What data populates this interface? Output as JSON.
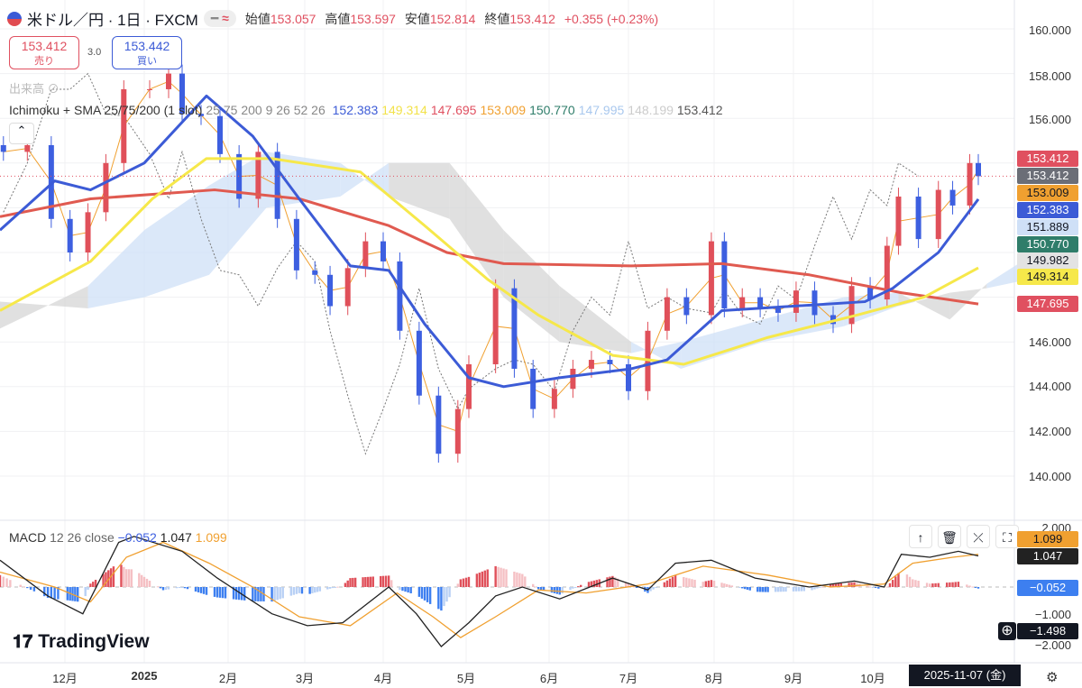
{
  "header": {
    "symbol": "米ドル／円 · 1日 · FXCM",
    "pill": "≈",
    "open_label": "始値",
    "open": "153.057",
    "high_label": "高値",
    "high": "153.597",
    "low_label": "安値",
    "low": "152.814",
    "close_label": "終値",
    "close": "153.412",
    "change": "+0.355 (+0.23%)"
  },
  "trade": {
    "sell_price": "153.412",
    "sell_label": "売り",
    "spread": "3.0",
    "buy_price": "153.442",
    "buy_label": "買い"
  },
  "volume_label": "出来高",
  "indicator": {
    "name": "Ichimoku + SMA 25/75/200 (1 slot)",
    "params": "25 75 200 9 26 52 26",
    "values": [
      {
        "v": "152.383",
        "c": "#3c5bd6"
      },
      {
        "v": "149.314",
        "c": "#f2e24a"
      },
      {
        "v": "147.695",
        "c": "#e05060"
      },
      {
        "v": "153.009",
        "c": "#f0a030"
      },
      {
        "v": "150.770",
        "c": "#2f7d6a"
      },
      {
        "v": "147.995",
        "c": "#a9c8ee"
      },
      {
        "v": "148.199",
        "c": "#cccccc"
      },
      {
        "v": "153.412",
        "c": "#555555"
      }
    ]
  },
  "price_axis": [
    "160.000",
    "158.000",
    "156.000",
    "146.000",
    "144.000",
    "142.000",
    "140.000"
  ],
  "price_tags": [
    {
      "v": "153.412",
      "bg": "#e05060",
      "fg": "#fff"
    },
    {
      "v": "153.412",
      "bg": "#6b6e77",
      "fg": "#fff"
    },
    {
      "v": "153.009",
      "bg": "#f0a030",
      "fg": "#131722"
    },
    {
      "v": "152.383",
      "bg": "#3c5bd6",
      "fg": "#fff"
    },
    {
      "v": "151.889",
      "bg": "#cfe0f7",
      "fg": "#131722"
    },
    {
      "v": "150.770",
      "bg": "#2f7d6a",
      "fg": "#fff"
    },
    {
      "v": "149.982",
      "bg": "#e3e3e3",
      "fg": "#131722"
    },
    {
      "v": "149.314",
      "bg": "#f6e84a",
      "fg": "#131722"
    },
    {
      "v": "147.695",
      "bg": "#e05060",
      "fg": "#fff"
    }
  ],
  "macd": {
    "label": "MACD",
    "params": "12 26 close",
    "hist": "−0.052",
    "macd": "1.047",
    "signal": "1.099",
    "axis": [
      "2.000",
      "−1.000",
      "−2.000"
    ],
    "tags": {
      "signal": "1.099",
      "macd": "1.047",
      "hist": "−0.052",
      "cursor": "−1.498"
    }
  },
  "months": [
    "12月",
    "2025",
    "2月",
    "3月",
    "4月",
    "5月",
    "6月",
    "7月",
    "8月",
    "9月",
    "10月"
  ],
  "cursor_date": "2025-11-07 (金)",
  "brand": "TradingView",
  "colors": {
    "up": "#e0505a",
    "down": "#3d5fe0",
    "sma25": "#3c5bd6",
    "sma75": "#f6e84a",
    "sma200": "#e05a50",
    "cloud_up": "#cfe0f7",
    "cloud_down": "#d6d6d6",
    "macd": "#222",
    "signal": "#f0a030"
  },
  "chart_data": [
    {
      "type": "candlestick",
      "title": "米ドル／円 · 1日 · FXCM",
      "ylim": [
        139,
        161
      ],
      "closes": [
        [
          "2024-11-13",
          154.5
        ],
        [
          "2024-11-20",
          154.8
        ],
        [
          "2024-11-27",
          151.5
        ],
        [
          "2024-12-03",
          150.0
        ],
        [
          "2024-12-10",
          151.8
        ],
        [
          "2024-12-17",
          154.0
        ],
        [
          "2024-12-24",
          157.3
        ],
        [
          "2025-01-03",
          157.3
        ],
        [
          "2025-01-10",
          158.0
        ],
        [
          "2025-01-15",
          156.2
        ],
        [
          "2025-01-22",
          156.1
        ],
        [
          "2025-01-29",
          154.4
        ],
        [
          "2025-02-05",
          152.4
        ],
        [
          "2025-02-12",
          154.5
        ],
        [
          "2025-02-19",
          151.5
        ],
        [
          "2025-02-26",
          149.2
        ],
        [
          "2025-03-05",
          149.0
        ],
        [
          "2025-03-11",
          147.6
        ],
        [
          "2025-03-18",
          149.3
        ],
        [
          "2025-03-25",
          150.5
        ],
        [
          "2025-04-01",
          149.6
        ],
        [
          "2025-04-07",
          146.5
        ],
        [
          "2025-04-14",
          143.6
        ],
        [
          "2025-04-21",
          141.0
        ],
        [
          "2025-04-28",
          143.0
        ],
        [
          "2025-05-02",
          145.0
        ],
        [
          "2025-05-12",
          148.4
        ],
        [
          "2025-05-19",
          144.8
        ],
        [
          "2025-05-26",
          143.0
        ],
        [
          "2025-06-03",
          143.9
        ],
        [
          "2025-06-10",
          144.8
        ],
        [
          "2025-06-17",
          145.2
        ],
        [
          "2025-06-24",
          145.0
        ],
        [
          "2025-07-01",
          143.8
        ],
        [
          "2025-07-08",
          146.5
        ],
        [
          "2025-07-15",
          148.0
        ],
        [
          "2025-07-22",
          147.2
        ],
        [
          "2025-07-31",
          150.5
        ],
        [
          "2025-08-05",
          147.5
        ],
        [
          "2025-08-12",
          148.0
        ],
        [
          "2025-08-19",
          147.5
        ],
        [
          "2025-08-26",
          147.3
        ],
        [
          "2025-09-02",
          148.3
        ],
        [
          "2025-09-09",
          147.2
        ],
        [
          "2025-09-16",
          146.8
        ],
        [
          "2025-09-23",
          148.5
        ],
        [
          "2025-09-30",
          147.9
        ],
        [
          "2025-10-06",
          150.3
        ],
        [
          "2025-10-10",
          152.5
        ],
        [
          "2025-10-17",
          150.6
        ],
        [
          "2025-10-24",
          152.8
        ],
        [
          "2025-10-29",
          152.1
        ],
        [
          "2025-11-04",
          154.0
        ],
        [
          "2025-11-07",
          153.412
        ]
      ],
      "sma25": [
        [
          "2024-11-12",
          151.0
        ],
        [
          "2024-11-28",
          153.2
        ],
        [
          "2024-12-11",
          152.8
        ],
        [
          "2025-01-01",
          154.0
        ],
        [
          "2025-01-24",
          157.0
        ],
        [
          "2025-02-10",
          155.2
        ],
        [
          "2025-02-27",
          152.4
        ],
        [
          "2025-03-19",
          149.4
        ],
        [
          "2025-04-03",
          149.2
        ],
        [
          "2025-04-16",
          146.8
        ],
        [
          "2025-05-02",
          144.4
        ],
        [
          "2025-05-15",
          144.0
        ],
        [
          "2025-06-05",
          144.4
        ],
        [
          "2025-07-02",
          144.8
        ],
        [
          "2025-07-15",
          145.2
        ],
        [
          "2025-08-04",
          147.4
        ],
        [
          "2025-09-01",
          147.6
        ],
        [
          "2025-09-28",
          147.8
        ],
        [
          "2025-10-08",
          148.4
        ],
        [
          "2025-10-24",
          150.0
        ],
        [
          "2025-11-07",
          152.383
        ]
      ],
      "sma75": [
        [
          "2024-11-12",
          147.4
        ],
        [
          "2024-12-11",
          149.6
        ],
        [
          "2025-01-04",
          152.4
        ],
        [
          "2025-01-24",
          154.2
        ],
        [
          "2025-02-17",
          154.2
        ],
        [
          "2025-03-23",
          153.6
        ],
        [
          "2025-04-16",
          151.2
        ],
        [
          "2025-05-09",
          148.8
        ],
        [
          "2025-05-28",
          147.2
        ],
        [
          "2025-06-25",
          145.4
        ],
        [
          "2025-07-21",
          145.0
        ],
        [
          "2025-08-22",
          146.2
        ],
        [
          "2025-09-25",
          147.2
        ],
        [
          "2025-10-19",
          148.0
        ],
        [
          "2025-11-07",
          149.314
        ]
      ],
      "sma200": [
        [
          "2024-11-12",
          151.6
        ],
        [
          "2024-12-11",
          152.4
        ],
        [
          "2025-01-27",
          152.8
        ],
        [
          "2025-02-27",
          152.4
        ],
        [
          "2025-04-03",
          151.2
        ],
        [
          "2025-04-24",
          150.0
        ],
        [
          "2025-05-15",
          149.5
        ],
        [
          "2025-07-02",
          149.4
        ],
        [
          "2025-08-04",
          149.5
        ],
        [
          "2025-09-07",
          149.0
        ],
        [
          "2025-10-11",
          148.2
        ],
        [
          "2025-11-07",
          147.695
        ]
      ],
      "cloud": [
        [
          "2024-11-12",
          146.6,
          147.8
        ],
        [
          "2024-12-10",
          148.5,
          147.5
        ],
        [
          "2025-01-01",
          151.0,
          148.0
        ],
        [
          "2025-01-25",
          153.0,
          149.0
        ],
        [
          "2025-02-15",
          154.5,
          152.0
        ],
        [
          "2025-03-15",
          154.0,
          152.5
        ],
        [
          "2025-04-03",
          152.5,
          154.0
        ],
        [
          "2025-04-25",
          151.5,
          154.0
        ],
        [
          "2025-05-15",
          148.0,
          151.0
        ],
        [
          "2025-06-05",
          146.0,
          148.5
        ],
        [
          "2025-07-02",
          145.5,
          146.0
        ],
        [
          "2025-07-20",
          146.0,
          144.8
        ],
        [
          "2025-08-20",
          147.0,
          146.0
        ],
        [
          "2025-09-20",
          148.0,
          146.7
        ],
        [
          "2025-10-10",
          148.2,
          147.6
        ],
        [
          "2025-10-28",
          147.0,
          148.2
        ],
        [
          "2025-11-10",
          148.6,
          148.4
        ],
        [
          "2025-11-25",
          149.8,
          148.8
        ]
      ]
    },
    {
      "type": "line",
      "title": "MACD 12 26 close",
      "ylim": [
        -2.4,
        2.4
      ],
      "macd": [
        [
          "2024-11-12",
          0.9
        ],
        [
          "2024-11-26",
          -0.3
        ],
        [
          "2024-12-08",
          -0.9
        ],
        [
          "2024-12-22",
          1.5
        ],
        [
          "2024-12-28",
          1.7
        ],
        [
          "2025-01-15",
          1.2
        ],
        [
          "2025-01-28",
          0.3
        ],
        [
          "2025-02-07",
          -0.3
        ],
        [
          "2025-02-17",
          -0.9
        ],
        [
          "2025-03-02",
          -1.3
        ],
        [
          "2025-03-16",
          -1.2
        ],
        [
          "2025-04-03",
          0.0
        ],
        [
          "2025-04-13",
          -0.9
        ],
        [
          "2025-04-22",
          -2.0
        ],
        [
          "2025-05-02",
          -1.2
        ],
        [
          "2025-05-12",
          -0.3
        ],
        [
          "2025-05-22",
          0.0
        ],
        [
          "2025-06-05",
          -0.4
        ],
        [
          "2025-06-25",
          0.3
        ],
        [
          "2025-07-08",
          -0.1
        ],
        [
          "2025-07-18",
          0.8
        ],
        [
          "2025-07-31",
          0.9
        ],
        [
          "2025-08-17",
          0.3
        ],
        [
          "2025-09-07",
          0.0
        ],
        [
          "2025-09-24",
          0.2
        ],
        [
          "2025-10-05",
          0.0
        ],
        [
          "2025-10-11",
          1.1
        ],
        [
          "2025-10-21",
          1.0
        ],
        [
          "2025-10-31",
          1.2
        ],
        [
          "2025-11-07",
          1.047
        ]
      ],
      "signal": [
        [
          "2024-11-12",
          0.5
        ],
        [
          "2024-11-28",
          0.0
        ],
        [
          "2024-12-11",
          -0.5
        ],
        [
          "2024-12-25",
          1.0
        ],
        [
          "2025-01-08",
          1.5
        ],
        [
          "2025-01-25",
          0.8
        ],
        [
          "2025-02-10",
          0.0
        ],
        [
          "2025-02-27",
          -1.0
        ],
        [
          "2025-03-19",
          -1.3
        ],
        [
          "2025-04-06",
          -0.2
        ],
        [
          "2025-04-19",
          -1.0
        ],
        [
          "2025-04-29",
          -1.7
        ],
        [
          "2025-05-12",
          -1.0
        ],
        [
          "2025-05-28",
          -0.1
        ],
        [
          "2025-06-15",
          -0.2
        ],
        [
          "2025-07-08",
          0.1
        ],
        [
          "2025-07-28",
          0.7
        ],
        [
          "2025-08-22",
          0.4
        ],
        [
          "2025-09-15",
          0.0
        ],
        [
          "2025-10-05",
          0.1
        ],
        [
          "2025-10-15",
          0.8
        ],
        [
          "2025-10-29",
          1.0
        ],
        [
          "2025-11-07",
          1.099
        ]
      ]
    }
  ]
}
